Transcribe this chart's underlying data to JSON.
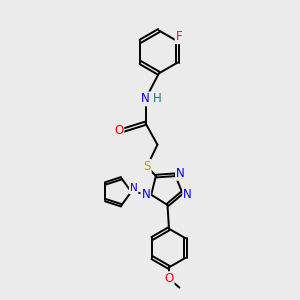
{
  "background_color": "#ebebeb",
  "atom_colors": {
    "C": "#000000",
    "N": "#0000ee",
    "O": "#ee0000",
    "S": "#aaaa00",
    "F": "#cc00cc",
    "H": "#008080"
  },
  "bond_color": "#000000",
  "bond_width": 1.4,
  "font_size_atom": 8.5,
  "font_size_small": 7.5
}
